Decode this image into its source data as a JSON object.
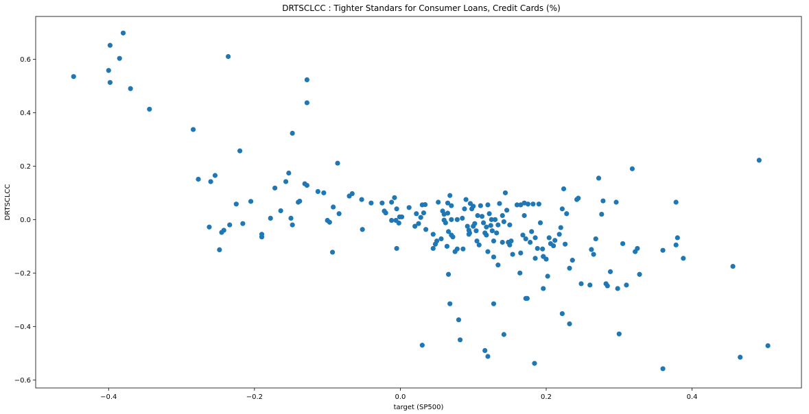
{
  "chart_data": {
    "type": "scatter",
    "title": "DRTSCLCC :  Tighter Standars for Consumer Loans, Credit Cards (%)",
    "xlabel": "target (SP500)",
    "ylabel": "DRTSCLCC",
    "xlim": [
      -0.5,
      0.55
    ],
    "ylim": [
      -0.63,
      0.76
    ],
    "xticks": [
      -0.4,
      -0.2,
      0.0,
      0.2,
      0.4
    ],
    "xtick_labels": [
      "−0.4",
      "−0.2",
      "0.0",
      "0.2",
      "0.4"
    ],
    "yticks": [
      -0.6,
      -0.4,
      -0.2,
      0.0,
      0.2,
      0.4,
      0.6
    ],
    "ytick_labels": [
      "−0.6",
      "−0.4",
      "−0.2",
      "0.0",
      "0.2",
      "0.4",
      "0.6"
    ],
    "grid": false,
    "legend": "none",
    "marker_color": "#1f77b4",
    "points": [
      [
        -0.448,
        0.535
      ],
      [
        -0.38,
        0.698
      ],
      [
        -0.398,
        0.652
      ],
      [
        -0.4,
        0.558
      ],
      [
        -0.398,
        0.513
      ],
      [
        -0.385,
        0.603
      ],
      [
        -0.37,
        0.49
      ],
      [
        -0.344,
        0.413
      ],
      [
        -0.236,
        0.61
      ],
      [
        -0.128,
        0.523
      ],
      [
        -0.128,
        0.437
      ],
      [
        -0.284,
        0.337
      ],
      [
        -0.148,
        0.323
      ],
      [
        -0.22,
        0.257
      ],
      [
        -0.086,
        0.211
      ],
      [
        -0.277,
        0.151
      ],
      [
        -0.26,
        0.142
      ],
      [
        -0.254,
        0.165
      ],
      [
        -0.157,
        0.142
      ],
      [
        -0.153,
        0.174
      ],
      [
        -0.172,
        0.118
      ],
      [
        -0.131,
        0.134
      ],
      [
        -0.128,
        0.128
      ],
      [
        -0.113,
        0.105
      ],
      [
        -0.105,
        0.1
      ],
      [
        -0.138,
        0.069
      ],
      [
        -0.14,
        0.065
      ],
      [
        -0.205,
        0.068
      ],
      [
        -0.225,
        0.058
      ],
      [
        -0.164,
        0.033
      ],
      [
        -0.178,
        0.005
      ],
      [
        -0.15,
        0.005
      ],
      [
        -0.148,
        -0.02
      ],
      [
        -0.216,
        -0.015
      ],
      [
        -0.234,
        -0.02
      ],
      [
        -0.242,
        -0.04
      ],
      [
        -0.245,
        -0.048
      ],
      [
        -0.262,
        -0.028
      ],
      [
        -0.19,
        -0.055
      ],
      [
        -0.19,
        -0.065
      ],
      [
        -0.248,
        -0.113
      ],
      [
        -0.092,
        0.047
      ],
      [
        -0.084,
        0.022
      ],
      [
        -0.1,
        -0.003
      ],
      [
        -0.097,
        -0.01
      ],
      [
        -0.093,
        -0.122
      ],
      [
        -0.07,
        0.088
      ],
      [
        -0.066,
        0.097
      ],
      [
        -0.053,
        0.075
      ],
      [
        -0.04,
        0.062
      ],
      [
        -0.052,
        -0.037
      ],
      [
        -0.025,
        0.062
      ],
      [
        -0.022,
        0.032
      ],
      [
        -0.02,
        0.025
      ],
      [
        -0.012,
        0.065
      ],
      [
        -0.008,
        0.082
      ],
      [
        -0.005,
        0.04
      ],
      [
        -0.012,
        -0.003
      ],
      [
        -0.006,
        -0.003
      ],
      [
        -0.001,
        0.01
      ],
      [
        0.002,
        0.01
      ],
      [
        -0.002,
        -0.013
      ],
      [
        0.012,
        0.045
      ],
      [
        -0.005,
        -0.108
      ],
      [
        0.022,
        0.022
      ],
      [
        0.02,
        -0.025
      ],
      [
        0.025,
        -0.015
      ],
      [
        0.03,
        0.055
      ],
      [
        0.032,
        0.025
      ],
      [
        0.034,
        0.056
      ],
      [
        0.035,
        -0.037
      ],
      [
        0.028,
        0.008
      ],
      [
        0.045,
        -0.055
      ],
      [
        0.045,
        -0.108
      ],
      [
        0.048,
        -0.092
      ],
      [
        0.05,
        -0.08
      ],
      [
        0.052,
        0.065
      ],
      [
        0.056,
        -0.072
      ],
      [
        0.058,
        0.032
      ],
      [
        0.06,
        0.02
      ],
      [
        0.06,
        -0.002
      ],
      [
        0.062,
        -0.012
      ],
      [
        0.065,
        0.062
      ],
      [
        0.065,
        0.024
      ],
      [
        0.066,
        -0.045
      ],
      [
        0.068,
        0.09
      ],
      [
        0.07,
        0.052
      ],
      [
        0.07,
        -0.058
      ],
      [
        0.07,
        0.0
      ],
      [
        0.064,
        -0.1
      ],
      [
        0.072,
        -0.065
      ],
      [
        0.075,
        -0.12
      ],
      [
        0.078,
        -0.11
      ],
      [
        0.078,
        0.0
      ],
      [
        0.085,
        0.005
      ],
      [
        0.088,
        0.04
      ],
      [
        0.09,
        0.075
      ],
      [
        0.092,
        -0.025
      ],
      [
        0.094,
        -0.04
      ],
      [
        0.095,
        -0.05
      ],
      [
        0.096,
        0.06
      ],
      [
        0.098,
        0.04
      ],
      [
        0.1,
        -0.025
      ],
      [
        0.102,
        -0.015
      ],
      [
        0.104,
        -0.042
      ],
      [
        0.105,
        -0.08
      ],
      [
        0.108,
        -0.095
      ],
      [
        0.11,
        0.052
      ],
      [
        0.112,
        0.012
      ],
      [
        0.114,
        -0.012
      ],
      [
        0.116,
        -0.05
      ],
      [
        0.118,
        -0.058
      ],
      [
        0.12,
        0.055
      ],
      [
        0.122,
        0.022
      ],
      [
        0.124,
        -0.022
      ],
      [
        0.126,
        -0.042
      ],
      [
        0.128,
        -0.08
      ],
      [
        0.13,
        -0.0
      ],
      [
        0.132,
        -0.05
      ],
      [
        0.134,
        -0.02
      ],
      [
        0.136,
        0.06
      ],
      [
        0.14,
        0.015
      ],
      [
        0.142,
        -0.008
      ],
      [
        0.144,
        0.1
      ],
      [
        0.146,
        0.035
      ],
      [
        0.148,
        -0.085
      ],
      [
        0.15,
        -0.02
      ],
      [
        0.152,
        -0.08
      ],
      [
        0.154,
        -0.13
      ],
      [
        0.16,
        0.055
      ],
      [
        0.165,
        0.055
      ],
      [
        0.168,
        -0.058
      ],
      [
        0.17,
        0.062
      ],
      [
        0.172,
        -0.072
      ],
      [
        0.175,
        0.058
      ],
      [
        0.178,
        -0.085
      ],
      [
        0.18,
        -0.045
      ],
      [
        0.182,
        0.058
      ],
      [
        0.185,
        -0.068
      ],
      [
        0.188,
        -0.108
      ],
      [
        0.19,
        0.058
      ],
      [
        0.192,
        -0.012
      ],
      [
        0.195,
        -0.11
      ],
      [
        0.196,
        -0.138
      ],
      [
        0.2,
        -0.148
      ],
      [
        0.204,
        -0.068
      ],
      [
        0.206,
        -0.09
      ],
      [
        0.21,
        -0.098
      ],
      [
        0.212,
        -0.078
      ],
      [
        0.218,
        -0.055
      ],
      [
        0.22,
        -0.03
      ],
      [
        0.222,
        0.04
      ],
      [
        0.224,
        0.115
      ],
      [
        0.226,
        -0.092
      ],
      [
        0.228,
        0.022
      ],
      [
        0.232,
        -0.182
      ],
      [
        0.236,
        -0.152
      ],
      [
        0.242,
        0.075
      ],
      [
        0.244,
        0.08
      ],
      [
        0.248,
        -0.24
      ],
      [
        0.262,
        -0.112
      ],
      [
        0.265,
        -0.13
      ],
      [
        0.268,
        -0.072
      ],
      [
        0.272,
        0.155
      ],
      [
        0.276,
        0.02
      ],
      [
        0.278,
        0.07
      ],
      [
        0.282,
        -0.24
      ],
      [
        0.284,
        -0.248
      ],
      [
        0.288,
        -0.195
      ],
      [
        0.296,
        0.065
      ],
      [
        0.298,
        -0.258
      ],
      [
        0.305,
        -0.09
      ],
      [
        0.31,
        -0.245
      ],
      [
        0.318,
        0.19
      ],
      [
        0.322,
        -0.12
      ],
      [
        0.325,
        -0.108
      ],
      [
        0.328,
        -0.205
      ],
      [
        0.36,
        -0.115
      ],
      [
        0.378,
        0.065
      ],
      [
        0.38,
        -0.068
      ],
      [
        0.378,
        -0.095
      ],
      [
        0.388,
        -0.145
      ],
      [
        0.456,
        -0.175
      ],
      [
        0.492,
        0.222
      ],
      [
        0.504,
        -0.472
      ],
      [
        0.466,
        -0.515
      ],
      [
        0.36,
        -0.558
      ],
      [
        0.3,
        -0.428
      ],
      [
        0.232,
        -0.39
      ],
      [
        0.222,
        -0.352
      ],
      [
        0.196,
        -0.258
      ],
      [
        0.202,
        -0.212
      ],
      [
        0.174,
        -0.295
      ],
      [
        0.172,
        -0.295
      ],
      [
        0.164,
        -0.2
      ],
      [
        0.142,
        -0.43
      ],
      [
        0.128,
        -0.315
      ],
      [
        0.128,
        -0.14
      ],
      [
        0.134,
        -0.17
      ],
      [
        0.116,
        -0.49
      ],
      [
        0.12,
        -0.512
      ],
      [
        0.184,
        -0.538
      ],
      [
        0.066,
        -0.205
      ],
      [
        0.068,
        -0.315
      ],
      [
        0.08,
        -0.375
      ],
      [
        0.082,
        -0.45
      ],
      [
        0.03,
        -0.47
      ],
      [
        0.15,
        -0.095
      ],
      [
        0.165,
        -0.125
      ],
      [
        0.14,
        -0.085
      ],
      [
        0.118,
        -0.028
      ],
      [
        0.106,
        0.015
      ],
      [
        0.094,
        -0.055
      ],
      [
        0.086,
        -0.11
      ],
      [
        0.12,
        -0.12
      ],
      [
        0.17,
        0.015
      ],
      [
        0.185,
        -0.145
      ],
      [
        0.26,
        -0.245
      ],
      [
        0.125,
        0.0
      ],
      [
        0.1,
        0.05
      ]
    ]
  }
}
